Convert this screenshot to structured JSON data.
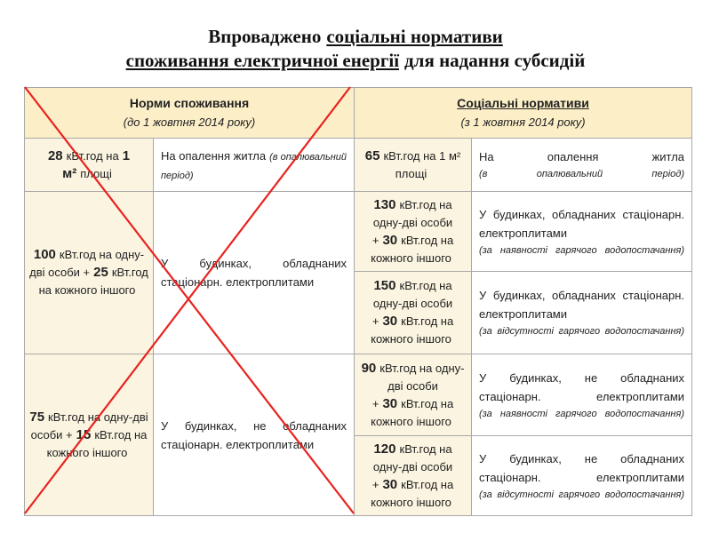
{
  "title": {
    "line1": [
      "Впроваджено",
      "соціальні нормативи"
    ],
    "line2": [
      "споживання електричної енергії",
      "для надання субсидій"
    ]
  },
  "table": {
    "header": [
      {
        "title": "Норми споживання",
        "subtitle": "(до 1 жовтня 2014 року)"
      },
      {
        "title": "Соціальні нормативи",
        "subtitle": "(з 1 жовтня 2014 року)"
      }
    ],
    "rows": [
      {
        "old": {
          "norm": [
            {
              "text": "28",
              "bold": true
            },
            {
              "text": "кВт.год на"
            },
            {
              "text": "1 м²",
              "bold": true
            },
            {
              "text": "площі"
            }
          ],
          "use": {
            "text": "На опалення житла",
            "note": "(в опалювальний період)"
          }
        },
        "new": [
          {
            "norm": [
              {
                "text": "65",
                "bold": true
              },
              {
                "text": "кВт.год на 1 м² площі"
              }
            ],
            "use": {
              "text": "На опалення житла",
              "note": "(в опалювальний період)"
            }
          }
        ]
      },
      {
        "old": {
          "norm": [
            {
              "text": "100",
              "bold": true
            },
            {
              "text": "кВт.год на одну-дві особи +"
            },
            {
              "text": "25",
              "bold": true
            },
            {
              "text": "кВт.год на кожного іншого"
            }
          ],
          "use": {
            "text": "У будинках, обладнаних стаціонарн. електроплитами"
          }
        },
        "new": [
          {
            "norm": [
              {
                "text": "130",
                "bold": true
              },
              {
                "text": "кВт.год на одну-дві особи +"
              },
              {
                "text": "30",
                "bold": true
              },
              {
                "text": "кВт.год на кожного іншого"
              }
            ],
            "use": {
              "text": "У будинках, обладнаних стаціонарн. електроплитами",
              "note": "(за наявності гарячого водопостачання)"
            }
          },
          {
            "norm": [
              {
                "text": "150",
                "bold": true
              },
              {
                "text": "кВт.год на одну-дві особи +"
              },
              {
                "text": "30",
                "bold": true
              },
              {
                "text": "кВт.год на кожного іншого"
              }
            ],
            "use": {
              "text": "У будинках, обладнаних стаціонарн. електроплитами",
              "note": "(за відсутності гарячого водопостачання)"
            }
          }
        ]
      },
      {
        "old": {
          "norm": [
            {
              "text": "75",
              "bold": true
            },
            {
              "text": "кВт.год на одну-дві особи +"
            },
            {
              "text": "15",
              "bold": true
            },
            {
              "text": "кВт.год на кожного іншого"
            }
          ],
          "use": {
            "text": "У будинках, не обладнаних стаціонарн. електроплитами"
          }
        },
        "new": [
          {
            "norm": [
              {
                "text": "90",
                "bold": true
              },
              {
                "text": "кВт.год на одну-дві особи +"
              },
              {
                "text": "30",
                "bold": true
              },
              {
                "text": "кВт.год на кожного іншого"
              }
            ],
            "use": {
              "text": "У будинках, не обладнаних стаціонарн. електроплитами",
              "note": "(за наявності гарячого водопостачання)"
            }
          },
          {
            "norm": [
              {
                "text": "120",
                "bold": true
              },
              {
                "text": "кВт.год на одну-дві особи +"
              },
              {
                "text": "30",
                "bold": true
              },
              {
                "text": "кВт.год на кожного іншого"
              }
            ],
            "use": {
              "text": "У будинках, не обладнаних стаціонарн. електроплитами",
              "note": "(за відсутності гарячого водопостачання)"
            }
          }
        ]
      }
    ]
  }
}
